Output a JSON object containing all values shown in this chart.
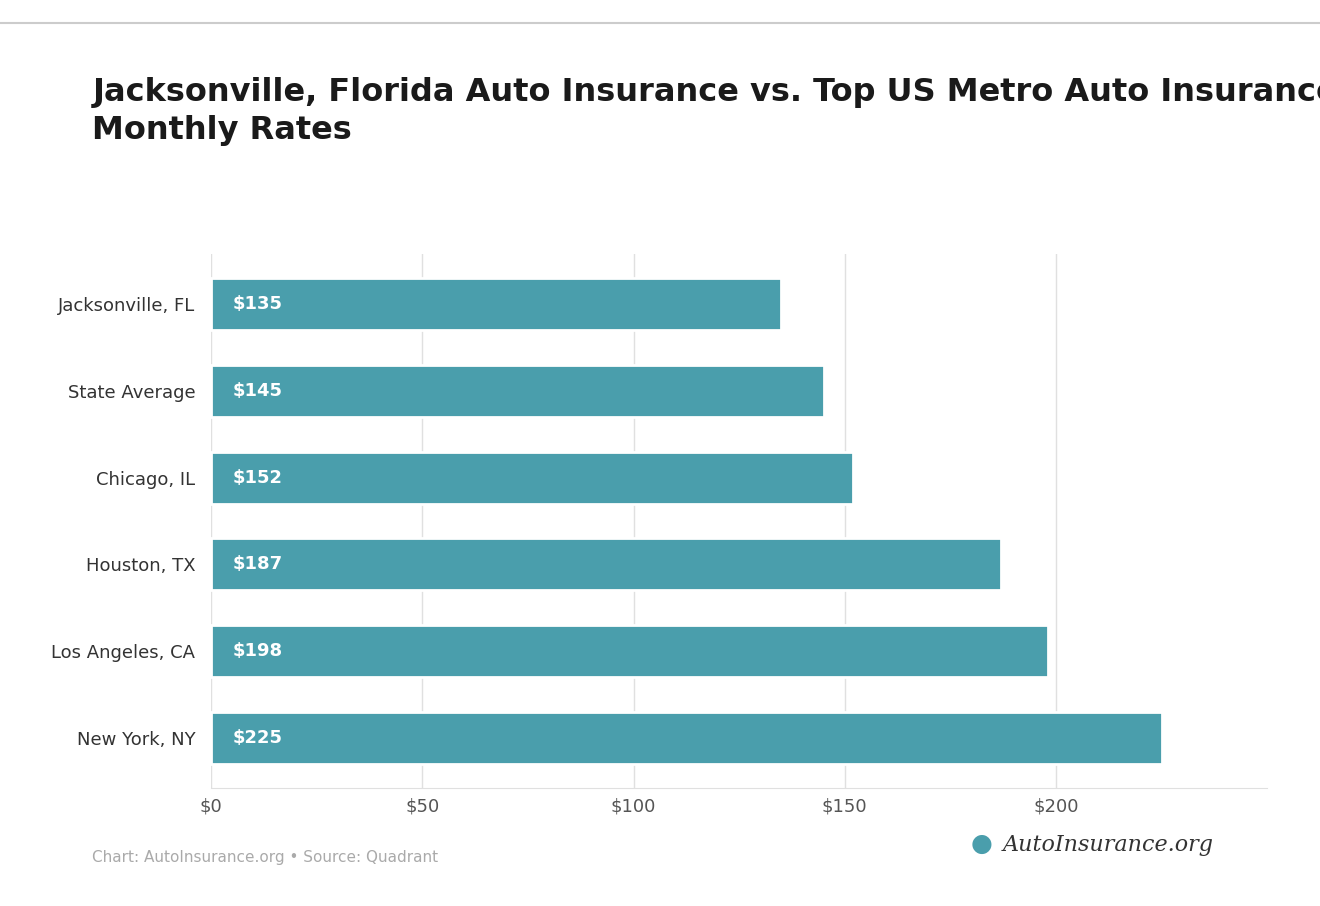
{
  "title": "Jacksonville, Florida Auto Insurance vs. Top US Metro Auto Insurance\nMonthly Rates",
  "categories": [
    "Jacksonville, FL",
    "State Average",
    "Chicago, IL",
    "Houston, TX",
    "Los Angeles, CA",
    "New York, NY"
  ],
  "values": [
    135,
    145,
    152,
    187,
    198,
    225
  ],
  "bar_color": "#4a9eac",
  "bar_labels": [
    "$135",
    "$145",
    "$152",
    "$187",
    "$198",
    "$225"
  ],
  "label_color": "#ffffff",
  "xlim": [
    0,
    250
  ],
  "xticks": [
    0,
    50,
    100,
    150,
    200
  ],
  "xtick_labels": [
    "$0",
    "$50",
    "$100",
    "$150",
    "$200"
  ],
  "background_color": "#ffffff",
  "title_fontsize": 23,
  "tick_fontsize": 13,
  "bar_label_fontsize": 13,
  "category_fontsize": 13,
  "footer_text": "Chart: AutoInsurance.org • Source: Quadrant",
  "footer_color": "#aaaaaa",
  "footer_fontsize": 11,
  "top_line_color": "#cccccc",
  "grid_color": "#e0e0e0"
}
